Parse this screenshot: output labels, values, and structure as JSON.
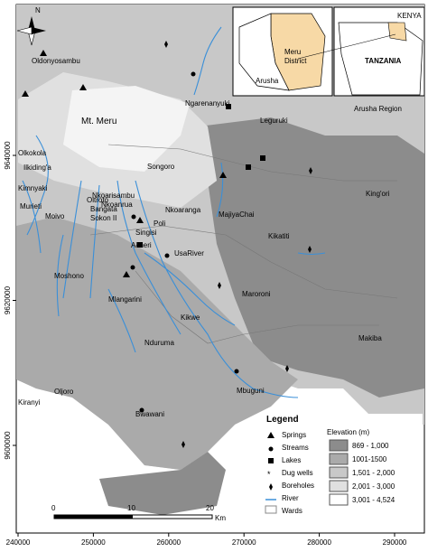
{
  "axes": {
    "x_ticks": [
      "240000",
      "250000",
      "260000",
      "270000",
      "280000",
      "290000"
    ],
    "y_ticks": [
      "9600000",
      "9620000",
      "9640000"
    ]
  },
  "north_arrow": "N",
  "main_label": "Mt. Meru",
  "places": [
    "Oldonyosambu",
    "Ngarenanyuki",
    "Leguruki",
    "Olkokola",
    "Ilkiding'a",
    "Songoro",
    "Kimnyaki",
    "Nkoarisambu",
    "Nkoanrua",
    "Oltroto",
    "Bangata",
    "Sokon II",
    "Murieti",
    "Moivo",
    "King'ori",
    "Nkoaranga",
    "MajiyaChai",
    "Poli",
    "Singisi",
    "Kikatiti",
    "Akheri",
    "UsaRiver",
    "Moshono",
    "Maroroni",
    "Mlangarini",
    "Kikwe",
    "Nduruma",
    "Makiba",
    "Mbuguni",
    "Oljoro",
    "Bwawani",
    "Kiranyi"
  ],
  "insets": {
    "district": [
      "Meru",
      "District"
    ],
    "arusha": "Arusha",
    "kenya": "KENYA",
    "tanzania": "TANZANIA",
    "region": "Arusha Region"
  },
  "legend": {
    "title": "Legend",
    "items": [
      "Springs",
      "Streams",
      "Lakes",
      "Dug wells",
      "Boreholes",
      "River",
      "Wards"
    ],
    "elevation_title": "Elevation (m)",
    "elevation_classes": [
      "869 - 1,000",
      "1001-1500",
      "1,501 - 2,000",
      "2,001 - 3,000",
      "3,001 - 4,524"
    ]
  },
  "scale_bar": {
    "ticks": [
      "0",
      "10",
      "20"
    ],
    "unit": "Km"
  }
}
